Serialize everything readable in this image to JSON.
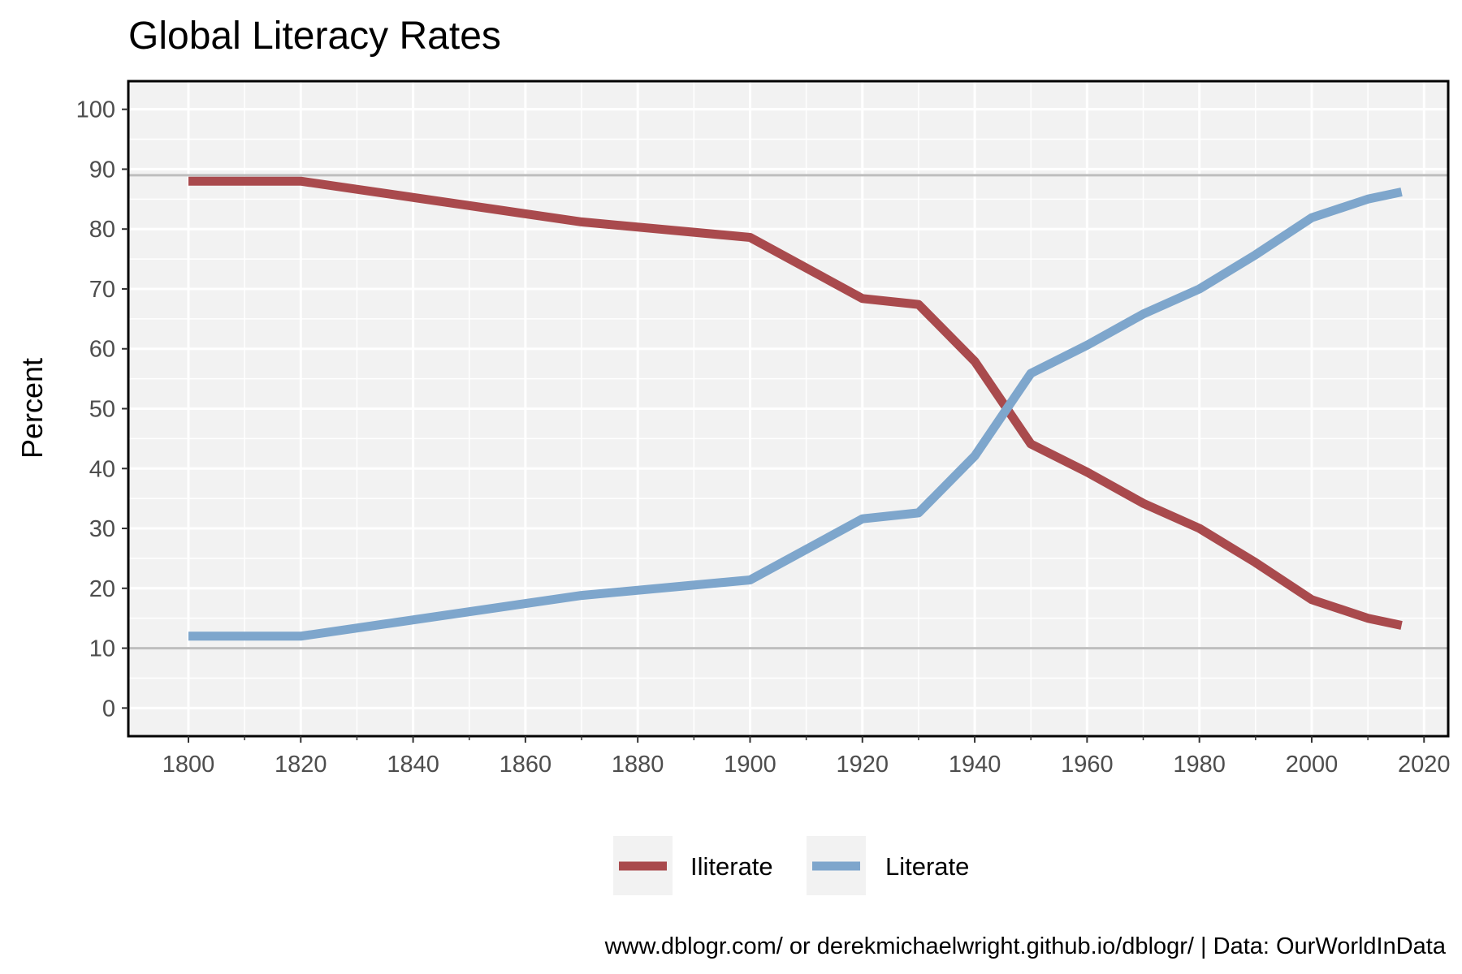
{
  "chart_data": {
    "type": "line",
    "title": "Global Literacy Rates",
    "xlabel": "",
    "ylabel": "Percent",
    "caption": "www.dblogr.com/ or derekmichaelwright.github.io/dblogr/ | Data: OurWorldInData",
    "xlim": [
      1789.3,
      2024.3
    ],
    "ylim": [
      -4.7,
      104.7
    ],
    "x_ticks": [
      1800,
      1820,
      1840,
      1860,
      1880,
      1900,
      1920,
      1940,
      1960,
      1980,
      2000,
      2020
    ],
    "y_ticks": [
      0,
      10,
      20,
      30,
      40,
      50,
      60,
      70,
      80,
      90,
      100
    ],
    "reference_lines": [
      10,
      89
    ],
    "grid": true,
    "legend_position": "bottom",
    "series": [
      {
        "name": "Iliterate",
        "color": "#a94a4d",
        "x": [
          1800,
          1820,
          1870,
          1900,
          1920,
          1930,
          1940,
          1950,
          1960,
          1970,
          1980,
          1990,
          2000,
          2010,
          2016
        ],
        "values": [
          88,
          88,
          81.2,
          78.6,
          68.4,
          67.4,
          57.9,
          44.1,
          39.4,
          34.2,
          30.0,
          24.3,
          18.1,
          15.0,
          13.8
        ]
      },
      {
        "name": "Literate",
        "color": "#7ea6cc",
        "x": [
          1800,
          1820,
          1870,
          1900,
          1920,
          1930,
          1940,
          1950,
          1960,
          1970,
          1980,
          1990,
          2000,
          2010,
          2016
        ],
        "values": [
          12,
          12,
          18.8,
          21.4,
          31.6,
          32.6,
          42.1,
          55.9,
          60.6,
          65.8,
          70.0,
          75.7,
          81.9,
          85.0,
          86.2
        ]
      }
    ]
  }
}
